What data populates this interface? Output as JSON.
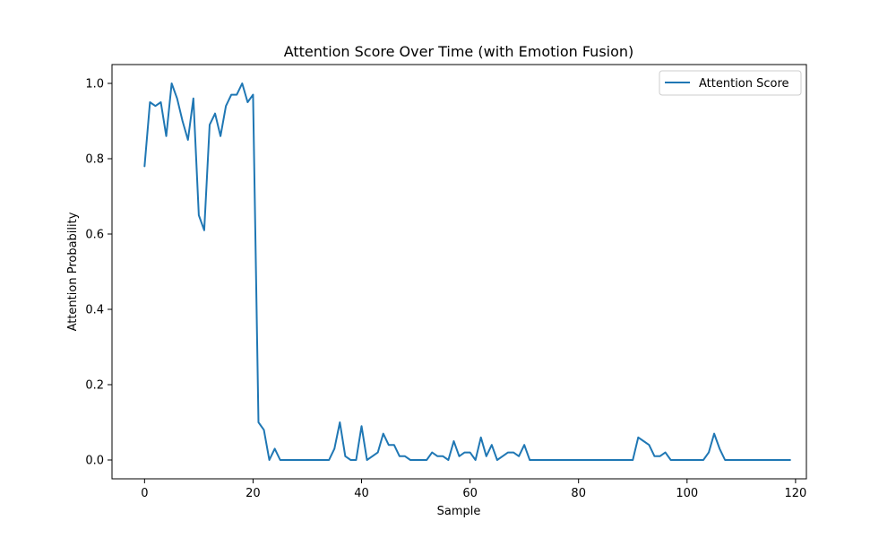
{
  "chart_data": {
    "type": "line",
    "title": "Attention Score Over Time (with Emotion Fusion)",
    "xlabel": "Sample",
    "ylabel": "Attention Probability",
    "xlim": [
      -6,
      122
    ],
    "ylim": [
      -0.05,
      1.05
    ],
    "xticks": [
      0,
      20,
      40,
      60,
      80,
      100,
      120
    ],
    "yticks": [
      0.0,
      0.2,
      0.4,
      0.6,
      0.8,
      1.0
    ],
    "ytick_labels": [
      "0.0",
      "0.2",
      "0.4",
      "0.6",
      "0.8",
      "1.0"
    ],
    "grid": false,
    "legend_position": "top-right",
    "series": [
      {
        "name": "Attention Score",
        "color": "#1f77b4",
        "x": [
          0,
          1,
          2,
          3,
          4,
          5,
          6,
          7,
          8,
          9,
          10,
          11,
          12,
          13,
          14,
          15,
          16,
          17,
          18,
          19,
          20,
          21,
          22,
          23,
          24,
          25,
          26,
          27,
          28,
          29,
          30,
          31,
          32,
          33,
          34,
          35,
          36,
          37,
          38,
          39,
          40,
          41,
          42,
          43,
          44,
          45,
          46,
          47,
          48,
          49,
          50,
          51,
          52,
          53,
          54,
          55,
          56,
          57,
          58,
          59,
          60,
          61,
          62,
          63,
          64,
          65,
          66,
          67,
          68,
          69,
          70,
          71,
          72,
          73,
          74,
          75,
          76,
          77,
          78,
          79,
          80,
          81,
          82,
          83,
          84,
          85,
          86,
          87,
          88,
          89,
          90,
          91,
          92,
          93,
          94,
          95,
          96,
          97,
          98,
          99,
          100,
          101,
          102,
          103,
          104,
          105,
          106,
          107,
          108,
          109,
          110,
          111,
          112,
          113,
          114,
          115,
          116,
          117,
          118,
          119
        ],
        "y": [
          0.78,
          0.95,
          0.94,
          0.95,
          0.86,
          1.0,
          0.96,
          0.9,
          0.85,
          0.96,
          0.65,
          0.61,
          0.89,
          0.92,
          0.86,
          0.94,
          0.97,
          0.97,
          1.0,
          0.95,
          0.97,
          0.1,
          0.08,
          0.0,
          0.03,
          0.0,
          0.0,
          0.0,
          0.0,
          0.0,
          0.0,
          0.0,
          0.0,
          0.0,
          0.0,
          0.03,
          0.1,
          0.01,
          0.0,
          0.0,
          0.09,
          0.0,
          0.01,
          0.02,
          0.07,
          0.04,
          0.04,
          0.01,
          0.01,
          0.0,
          0.0,
          0.0,
          0.0,
          0.02,
          0.01,
          0.01,
          0.0,
          0.05,
          0.01,
          0.02,
          0.02,
          0.0,
          0.06,
          0.01,
          0.04,
          0.0,
          0.01,
          0.02,
          0.02,
          0.01,
          0.04,
          0.0,
          0.0,
          0.0,
          0.0,
          0.0,
          0.0,
          0.0,
          0.0,
          0.0,
          0.0,
          0.0,
          0.0,
          0.0,
          0.0,
          0.0,
          0.0,
          0.0,
          0.0,
          0.0,
          0.0,
          0.06,
          0.05,
          0.04,
          0.01,
          0.01,
          0.02,
          0.0,
          0.0,
          0.0,
          0.0,
          0.0,
          0.0,
          0.0,
          0.02,
          0.07,
          0.03,
          0.0,
          0.0,
          0.0,
          0.0,
          0.0,
          0.0,
          0.0,
          0.0,
          0.0,
          0.0,
          0.0,
          0.0,
          0.0
        ]
      }
    ]
  }
}
